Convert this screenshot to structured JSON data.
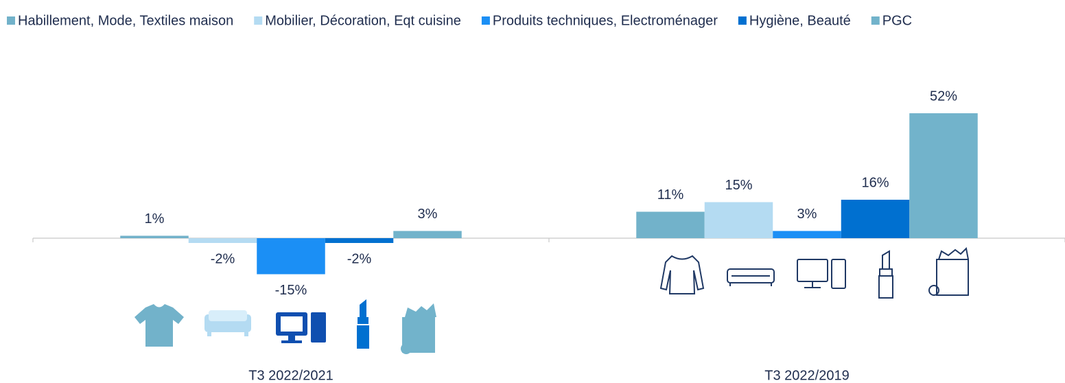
{
  "chart_data": {
    "type": "bar",
    "categories": [
      "T3 2022/2021",
      "T3 2022/2019"
    ],
    "series": [
      {
        "name": "Habillement, Mode, Textiles maison",
        "color": "#72b2ca",
        "values": [
          1,
          11
        ],
        "value_labels": [
          "1%",
          "11%"
        ]
      },
      {
        "name": "Mobilier, Décoration, Eqt cuisine",
        "color": "#b4dbf2",
        "values": [
          -2,
          15
        ],
        "value_labels": [
          "-2%",
          "15%"
        ]
      },
      {
        "name": "Produits techniques, Electroménager",
        "color": "#1b8ff5",
        "values": [
          -15,
          3
        ],
        "value_labels": [
          "-15%",
          "3%"
        ]
      },
      {
        "name": "Hygiène, Beauté",
        "color": "#0070d0",
        "values": [
          -2,
          16
        ],
        "value_labels": [
          "-2%",
          "16%"
        ]
      },
      {
        "name": "PGC",
        "color": "#72b3cb",
        "values": [
          3,
          52
        ],
        "value_labels": [
          "3%",
          "52%"
        ]
      }
    ],
    "legend": "top"
  }
}
